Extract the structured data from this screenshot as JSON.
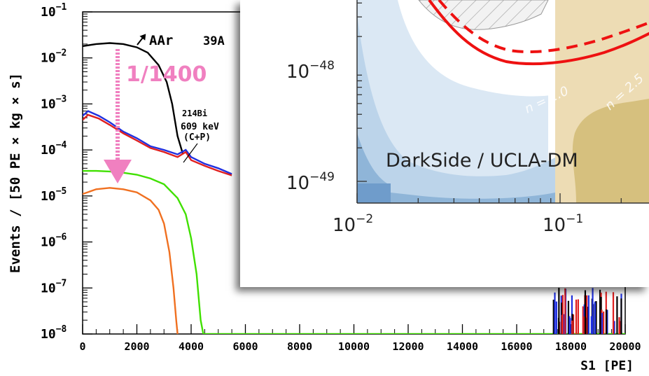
{
  "chart_data": [
    {
      "type": "line",
      "ylabel": "Events / [50 PE × kg × s]",
      "xlabel": "S1  [PE]",
      "xlim": [
        0,
        20000
      ],
      "ylim": [
        1e-08,
        0.1
      ],
      "yscale": "log",
      "x_ticks": [
        "0",
        "2000",
        "4000",
        "6000",
        "8000",
        "10000",
        "12000",
        "14000",
        "16000",
        "18000",
        "20000"
      ],
      "y_tick_exponents": [
        "−1",
        "−2",
        "−3",
        "−4",
        "−5",
        "−6",
        "−7",
        "−8"
      ],
      "series": [
        {
          "color": "#000000",
          "x": [
            0,
            500,
            1000,
            1500,
            2000,
            2400,
            2800,
            3100,
            3300,
            3500,
            3700
          ],
          "y": [
            0.018,
            0.02,
            0.021,
            0.02,
            0.017,
            0.013,
            0.007,
            0.003,
            0.001,
            0.0002,
            8e-05
          ]
        },
        {
          "color": "#2030e0",
          "x": [
            0,
            200,
            600,
            1000,
            1500,
            2000,
            2500,
            3000,
            3500,
            3800,
            4000,
            4500,
            5000,
            5500
          ],
          "y": [
            0.00055,
            0.0007,
            0.00055,
            0.0004,
            0.00025,
            0.00018,
            0.00012,
            0.0001,
            8e-05,
            0.0001,
            7e-05,
            5e-05,
            4e-05,
            3e-05
          ]
        },
        {
          "color": "#e02020",
          "x": [
            0,
            200,
            600,
            1000,
            1500,
            2000,
            2500,
            3000,
            3500,
            3800,
            4000,
            4500,
            5000,
            5500
          ],
          "y": [
            0.00045,
            0.00058,
            0.00048,
            0.00035,
            0.00023,
            0.00016,
            0.00011,
            9e-05,
            7e-05,
            9e-05,
            6e-05,
            4.5e-05,
            3.5e-05,
            2.8e-05
          ]
        },
        {
          "color": "#40e000",
          "x": [
            0,
            500,
            1000,
            1500,
            2000,
            2500,
            3000,
            3500,
            3800,
            4000,
            4200,
            4350,
            4450,
            20000
          ],
          "y": [
            3.5e-05,
            3.5e-05,
            3.4e-05,
            3.2e-05,
            2.9e-05,
            2.4e-05,
            1.8e-05,
            9e-06,
            4e-06,
            1.2e-06,
            2e-07,
            2e-08,
            1e-08,
            1e-08
          ]
        },
        {
          "color": "#f07020",
          "x": [
            0,
            500,
            1000,
            1500,
            2000,
            2500,
            2800,
            3000,
            3200,
            3350,
            3450,
            3500
          ],
          "y": [
            1.1e-05,
            1.4e-05,
            1.5e-05,
            1.4e-05,
            1.2e-05,
            8e-06,
            5e-06,
            2.5e-06,
            6e-07,
            1e-07,
            2e-08,
            1e-08
          ]
        }
      ],
      "annotations": [
        {
          "text": "AAr",
          "color": "#000000"
        },
        {
          "text": "39A",
          "color": "#000000"
        },
        {
          "text": "1/1400",
          "color": "#f080c0"
        },
        {
          "text": "214Bi",
          "color": "#000000"
        },
        {
          "text": "609 keV",
          "color": "#000000"
        },
        {
          "text": "(C+P)",
          "color": "#000000"
        }
      ]
    },
    {
      "type": "line",
      "yscale": "log",
      "xscale": "log",
      "x_tick_labels": [
        {
          "base": "10",
          "exp": "−2"
        },
        {
          "base": "10",
          "exp": "−1"
        }
      ],
      "y_tick_labels": [
        {
          "base": "10",
          "exp": "−48"
        },
        {
          "base": "10",
          "exp": "−49"
        }
      ],
      "series": [
        {
          "style": "solid",
          "color": "#ee1111"
        },
        {
          "style": "dashed",
          "color": "#ee1111"
        }
      ],
      "region_labels": [
        "n = 2.0",
        "n = 2.5"
      ],
      "caption": "DarkSide / UCLA-DM"
    }
  ]
}
